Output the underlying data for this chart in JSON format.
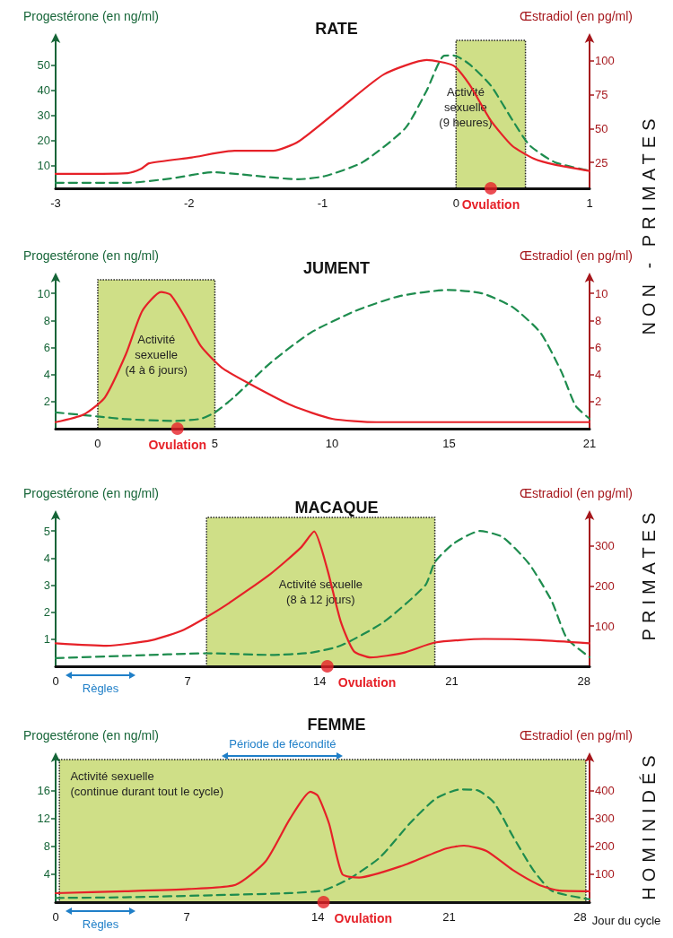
{
  "chart_data": [
    {
      "type": "line",
      "title": "RATE",
      "ylabel": "Progestérone (en ng/ml)",
      "y2label": "Œstradiol (en pg/ml)",
      "marker": "none",
      "grid": false,
      "xlim": [
        -3,
        1
      ],
      "xticks": [
        -3,
        -2,
        -1,
        0,
        1
      ],
      "ylim": [
        1,
        60
      ],
      "yticks": [
        10,
        20,
        30,
        40,
        50
      ],
      "y2lim": [
        6,
        115
      ],
      "y2ticks": [
        25,
        50,
        75,
        100
      ],
      "series": [
        {
          "color": "#1e8c4e",
          "line_style": "dashed",
          "x": [
            -3,
            -2.46,
            -2.14,
            -1.82,
            -1.62,
            -1.18,
            -0.98,
            -0.7,
            -0.38,
            -0.22,
            -0.09,
            -0.02,
            0.1,
            0.26,
            0.42,
            0.55,
            0.74,
            1
          ],
          "values": [
            3.2,
            3.2,
            4.9,
            7.4,
            6.6,
            4.6,
            5.9,
            11.4,
            25,
            40,
            53.9,
            54,
            50.5,
            42,
            28.4,
            18.2,
            11.4,
            8
          ]
        },
        {
          "color": "#e62128",
          "line_style": "solid",
          "axis": "y2",
          "x": [
            -3,
            -2.46,
            -2.36,
            -2.3,
            -1.98,
            -1.66,
            -1.37,
            -1.18,
            -0.86,
            -0.54,
            -0.22,
            -0.02,
            0.1,
            0.26,
            0.42,
            0.58,
            0.74,
            1
          ],
          "values": [
            16.6,
            17.2,
            20.3,
            24.4,
            28.7,
            33.7,
            33.7,
            40.5,
            65.4,
            90,
            100.5,
            96.4,
            82.5,
            56,
            37.4,
            28,
            23.4,
            18.8
          ]
        },
        {
          "type": "scatter",
          "marker": "circle",
          "color": "#e62128",
          "x": [
            0.26
          ],
          "values": [
            1
          ]
        }
      ],
      "bands": [
        {
          "axis": "x",
          "from": 0,
          "to": 0.52,
          "label": "Activité\nsexuelle\n(9 heures)",
          "color": "#cfdf87"
        }
      ],
      "annotations": [
        {
          "text": "Ovulation",
          "x": 0.26,
          "y": 1
        }
      ]
    },
    {
      "type": "line",
      "title": "JUMENT",
      "ylabel": "Progestérone (en ng/ml)",
      "y2label": "Œstradiol (en pg/ml)",
      "marker": "none",
      "grid": false,
      "xlim": [
        -1.8,
        21
      ],
      "xticks": [
        0,
        5,
        10,
        15,
        21
      ],
      "ylim": [
        0,
        11
      ],
      "yticks": [
        2,
        4,
        6,
        8,
        10
      ],
      "y2lim": [
        0,
        11
      ],
      "y2ticks": [
        2,
        4,
        6,
        8,
        10
      ],
      "series": [
        {
          "color": "#1e8c4e",
          "line_style": "dashed",
          "x": [
            -1.8,
            0,
            1.2,
            3.3,
            4.4,
            5,
            5.8,
            7.4,
            9.1,
            11,
            12.9,
            15,
            16.4,
            17.7,
            18.9,
            19.8,
            20.4,
            21
          ],
          "values": [
            1.2,
            0.9,
            0.7,
            0.57,
            0.73,
            1.2,
            2.3,
            4.9,
            7.1,
            8.7,
            9.8,
            10.25,
            10,
            9,
            7.1,
            4.2,
            1.7,
            0.73
          ]
        },
        {
          "color": "#e62128",
          "line_style": "solid",
          "axis": "y2",
          "x": [
            -1.8,
            -0.6,
            0.3,
            1.2,
            1.9,
            2.7,
            3.1,
            3.7,
            4.4,
            5.3,
            6.5,
            8.3,
            10,
            11.9,
            21
          ],
          "values": [
            0.48,
            1.05,
            2.3,
            5.5,
            8.7,
            10.1,
            9.9,
            8.3,
            6.1,
            4.5,
            3.3,
            1.7,
            0.73,
            0.48,
            0.48
          ]
        },
        {
          "type": "scatter",
          "marker": "circle",
          "color": "#e62128",
          "x": [
            3.4
          ],
          "values": [
            0
          ]
        }
      ],
      "bands": [
        {
          "axis": "x",
          "from": 0,
          "to": 5,
          "label": "Activité\nsexuelle\n(4 à 6 jours)",
          "color": "#cfdf87"
        }
      ],
      "annotations": [
        "NON - PRIMATES",
        {
          "text": "Ovulation",
          "x": 3.4,
          "y": 0
        }
      ]
    },
    {
      "type": "line",
      "title": "MACAQUE",
      "ylabel": "Progestérone (en ng/ml)",
      "y2label": "Œstradiol (en pg/ml)",
      "marker": "none",
      "grid": false,
      "xlim": [
        0,
        28.3
      ],
      "xticks": [
        0,
        7,
        14,
        21,
        28
      ],
      "ylim": [
        0,
        5.5
      ],
      "yticks": [
        1,
        2,
        3,
        4,
        5
      ],
      "y2lim": [
        0,
        370
      ],
      "y2ticks": [
        100,
        200,
        300
      ],
      "series": [
        {
          "color": "#1e8c4e",
          "line_style": "dashed",
          "x": [
            0,
            3.9,
            8,
            11.4,
            13.5,
            15.1,
            17.4,
            19.6,
            20.1,
            21.1,
            22.5,
            23.7,
            25.1,
            26.3,
            27.1,
            28.3
          ],
          "values": [
            0.3,
            0.39,
            0.48,
            0.42,
            0.5,
            0.76,
            1.64,
            3,
            3.85,
            4.54,
            5,
            4.77,
            3.78,
            2.4,
            1.03,
            0.34
          ]
        },
        {
          "color": "#e62128",
          "line_style": "solid",
          "axis": "y2",
          "x": [
            0,
            2.7,
            5.1,
            6.8,
            8.8,
            11.4,
            13,
            13.7,
            14.4,
            15.1,
            15.8,
            16.7,
            18.4,
            20.1,
            22.7,
            25.7,
            28.3
          ],
          "values": [
            57,
            51,
            65,
            91,
            145,
            230,
            295,
            335,
            241,
            113,
            38,
            22,
            33,
            59,
            68,
            65,
            57
          ]
        },
        {
          "type": "scatter",
          "marker": "circle",
          "color": "#e62128",
          "x": [
            14.4
          ],
          "values": [
            0
          ]
        }
      ],
      "bands": [
        {
          "axis": "x",
          "from": 8,
          "to": 20.1,
          "label": "Activité sexuelle\n(8 à 12 jours)",
          "color": "#cfdf87"
        }
      ],
      "annotations": [
        "PRIMATES",
        {
          "text": "Ovulation",
          "x": 14.4,
          "y": 0
        },
        "Règles"
      ]
    },
    {
      "type": "line",
      "title": "FEMME",
      "ylabel": "Progestérone (en ng/ml)",
      "y2label": "Œstradiol (en pg/ml)",
      "xlabel": "Jour du cycle",
      "marker": "none",
      "grid": false,
      "xlim": [
        0,
        28.5
      ],
      "xticks": [
        0,
        7,
        14,
        21,
        28
      ],
      "ylim": [
        0,
        20.5
      ],
      "yticks": [
        4,
        8,
        12,
        16
      ],
      "y2lim": [
        0,
        510
      ],
      "y2ticks": [
        100,
        200,
        300,
        400
      ],
      "series": [
        {
          "color": "#1e8c4e",
          "line_style": "dashed",
          "x": [
            0,
            3.7,
            8.5,
            12.5,
            14.3,
            15.7,
            17.3,
            18.9,
            20.3,
            21.6,
            22.5,
            23.4,
            24.4,
            25.5,
            26.5,
            28.5
          ],
          "values": [
            0.6,
            0.7,
            1,
            1.3,
            1.7,
            3.4,
            6.4,
            11.3,
            14.9,
            16.2,
            16.1,
            14.3,
            9.5,
            4.6,
            1.6,
            0.4
          ]
        },
        {
          "color": "#e62128",
          "line_style": "solid",
          "axis": "y2",
          "x": [
            0,
            3.7,
            7.1,
            9.6,
            11.2,
            12.5,
            13.6,
            14,
            14.6,
            15.3,
            16.2,
            18.5,
            20.8,
            21.8,
            23,
            24.4,
            25.8,
            26.8,
            28.5
          ],
          "values": [
            32,
            39,
            47,
            62,
            145,
            297,
            395,
            380,
            280,
            100,
            88,
            130,
            191,
            202,
            183,
            115,
            62,
            42,
            39
          ]
        },
        {
          "type": "scatter",
          "marker": "circle",
          "color": "#e62128",
          "x": [
            14.3
          ],
          "values": [
            0
          ]
        }
      ],
      "bands": [
        {
          "axis": "x",
          "from": 0.2,
          "to": 28.3,
          "label": "Activité sexuelle\n(continue durant tout le cycle)",
          "color": "#cfdf87"
        }
      ],
      "annotations": [
        "HOMINIDÉS",
        {
          "text": "Ovulation",
          "x": 14.3,
          "y": 0
        },
        "Règles",
        "Période de fécondité"
      ]
    }
  ]
}
